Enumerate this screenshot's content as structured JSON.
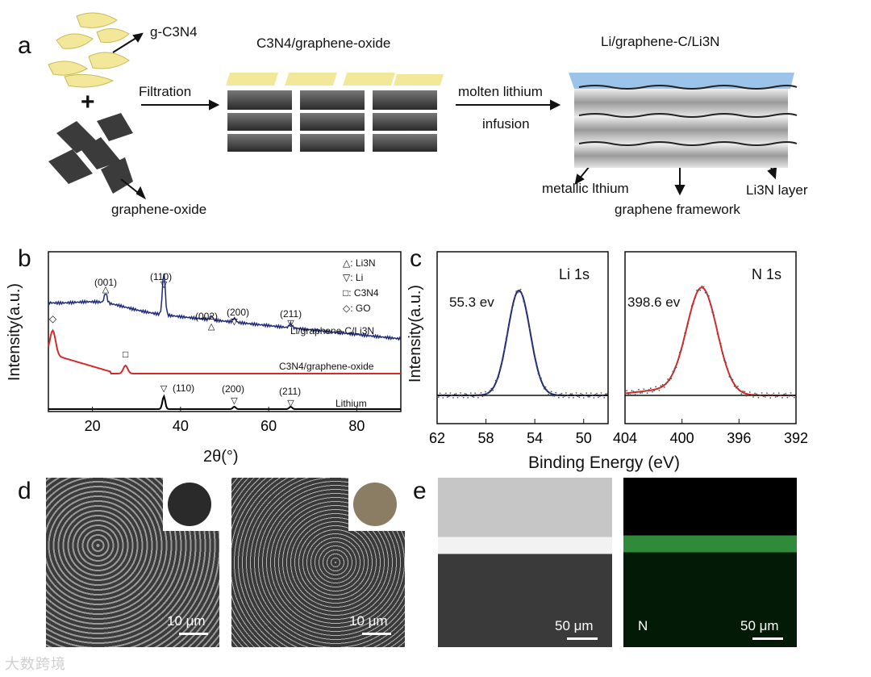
{
  "panels": {
    "a": "a",
    "b": "b",
    "c": "c",
    "d": "d",
    "e": "e"
  },
  "schematic": {
    "g_c3n4": "g-C3N4",
    "plus": "+",
    "graphene_oxide": "graphene-oxide",
    "filtration": "Filtration",
    "c3n4_go": "C3N4/graphene-oxide",
    "molten_1": "molten lithium",
    "molten_2": "infusion",
    "product": "Li/graphene-C/Li3N",
    "metallic": "metallic lthium",
    "framework": "graphene framework",
    "li3n_layer": "Li3N layer"
  },
  "xrd": {
    "ylabel": "Intensity(a.u.)",
    "xlabel": "2θ(°)",
    "legend": [
      "△: Li3N",
      "▽: Li",
      "□: C3N4",
      "◇: GO"
    ],
    "curves": [
      "Li/graphene-C/Li3N",
      "C3N4/graphene-oxide",
      "Lithium"
    ],
    "peaks_top": [
      "(001)",
      "(110)",
      "(002)",
      "(200)",
      "(211)"
    ],
    "peaks_bottom": [
      "(110)",
      "(200)",
      "(211)"
    ]
  },
  "xps": {
    "ylabel": "Intensity(a.u.)",
    "xlabel": "Binding Energy (eV)",
    "li_title": "Li 1s",
    "li_peak": "55.3 ev",
    "n_title": "N 1s",
    "n_peak": "398.6 ev"
  },
  "images": {
    "d1_scale": "10 μm",
    "d2_scale": "10 μm",
    "e1_scale": "50 μm",
    "e2_scale": "50 μm",
    "e2_element": "N"
  },
  "watermark": "大数跨境",
  "chart_data": [
    {
      "type": "line",
      "xlabel": "2θ(°)",
      "ylabel": "Intensity(a.u.)",
      "xlim": [
        10,
        90
      ],
      "x_ticks": [
        20,
        40,
        60,
        80
      ],
      "series": [
        {
          "name": "Li/graphene-C/Li3N",
          "color": "#1f2a7a",
          "peaks_2theta": [
            23,
            36.2,
            47,
            52.2,
            65
          ]
        },
        {
          "name": "C3N4/graphene-oxide",
          "color": "#d42a2a",
          "peaks_2theta": [
            11,
            27.5
          ]
        },
        {
          "name": "Lithium",
          "color": "#000000",
          "peaks_2theta": [
            36.2,
            52.2,
            65
          ]
        }
      ]
    },
    {
      "type": "line",
      "xlabel": "Binding Energy (eV)",
      "ylabel": "Intensity(a.u.)",
      "subplots": [
        {
          "name": "Li 1s",
          "xlim": [
            62,
            48
          ],
          "x_ticks": [
            62,
            58,
            54,
            50
          ],
          "peak_ev": 55.3,
          "color": "#1f2a7a"
        },
        {
          "name": "N 1s",
          "xlim": [
            404,
            392
          ],
          "x_ticks": [
            404,
            400,
            396,
            392
          ],
          "peak_ev": 398.6,
          "color": "#d42a2a"
        }
      ]
    }
  ]
}
